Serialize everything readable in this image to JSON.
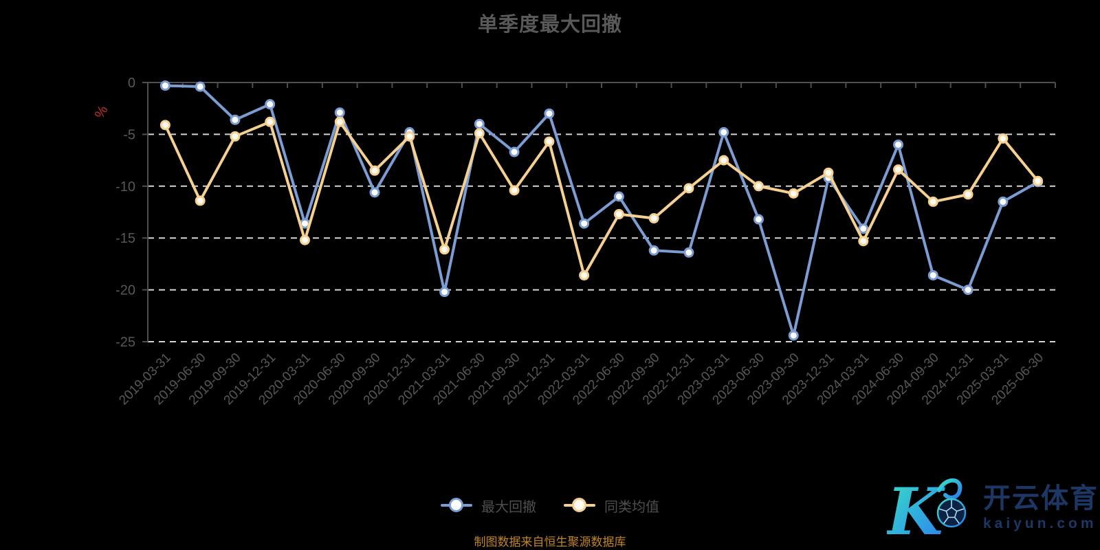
{
  "header": {
    "title": "单季度最大回撤"
  },
  "footer": {
    "source_note": "制图数据来自恒生聚源数据库"
  },
  "watermark": {
    "brand_name": "开云体育",
    "brand_domain": "kaiyun.com"
  },
  "colors": {
    "background": "#000000",
    "title_text": "#595959",
    "axis_line": "#4e4e54",
    "gridline": "#d6d6d6",
    "axis_label": "#575757",
    "legend_text": "#4e4e4e",
    "source_text": "#c2861f",
    "unit_label": "#c3302f",
    "watermark_navy": "#1d3765",
    "watermark_teal": "#38e3c6",
    "watermark_blue": "#2b7cf0"
  },
  "chart_data": {
    "type": "line",
    "title": "单季度最大回撤",
    "ylabel": "%",
    "ylim": [
      -25,
      0
    ],
    "y_ticks": [
      0,
      -5,
      -10,
      -15,
      -20,
      -25
    ],
    "grid": "horizontal-dashed",
    "legend_position": "bottom",
    "x_label_rotate": 45,
    "categories": [
      "2019-03-31",
      "2019-06-30",
      "2019-09-30",
      "2019-12-31",
      "2020-03-31",
      "2020-06-30",
      "2020-09-30",
      "2020-12-31",
      "2021-03-31",
      "2021-06-30",
      "2021-09-30",
      "2021-12-31",
      "2022-03-31",
      "2022-06-30",
      "2022-09-30",
      "2022-12-31",
      "2023-03-31",
      "2023-06-30",
      "2023-09-30",
      "2023-12-31",
      "2024-03-31",
      "2024-06-30",
      "2024-09-30",
      "2024-12-31",
      "2025-03-31",
      "2025-06-30"
    ],
    "series": [
      {
        "name": "最大回撤",
        "color": "#7c9dd3",
        "marker_fill": "#ffffff",
        "values": [
          -0.3,
          -0.4,
          -3.6,
          -2.1,
          -13.6,
          -2.9,
          -10.6,
          -4.8,
          -20.2,
          -4.0,
          -6.7,
          -3.0,
          -13.6,
          -11.0,
          -16.2,
          -16.4,
          -4.8,
          -13.2,
          -24.4,
          -9.2,
          -14.1,
          -6.0,
          -18.6,
          -20.0,
          -11.5,
          -9.6
        ]
      },
      {
        "name": "同类均值",
        "color": "#f6d091",
        "marker_fill": "#fffbf2",
        "values": [
          -4.1,
          -11.4,
          -5.2,
          -3.8,
          -15.2,
          -3.8,
          -8.5,
          -5.2,
          -16.1,
          -4.9,
          -10.4,
          -5.7,
          -18.6,
          -12.7,
          -13.1,
          -10.2,
          -7.5,
          -10.0,
          -10.7,
          -8.7,
          -15.3,
          -8.4,
          -11.5,
          -10.8,
          -5.4,
          -9.5
        ]
      }
    ]
  }
}
